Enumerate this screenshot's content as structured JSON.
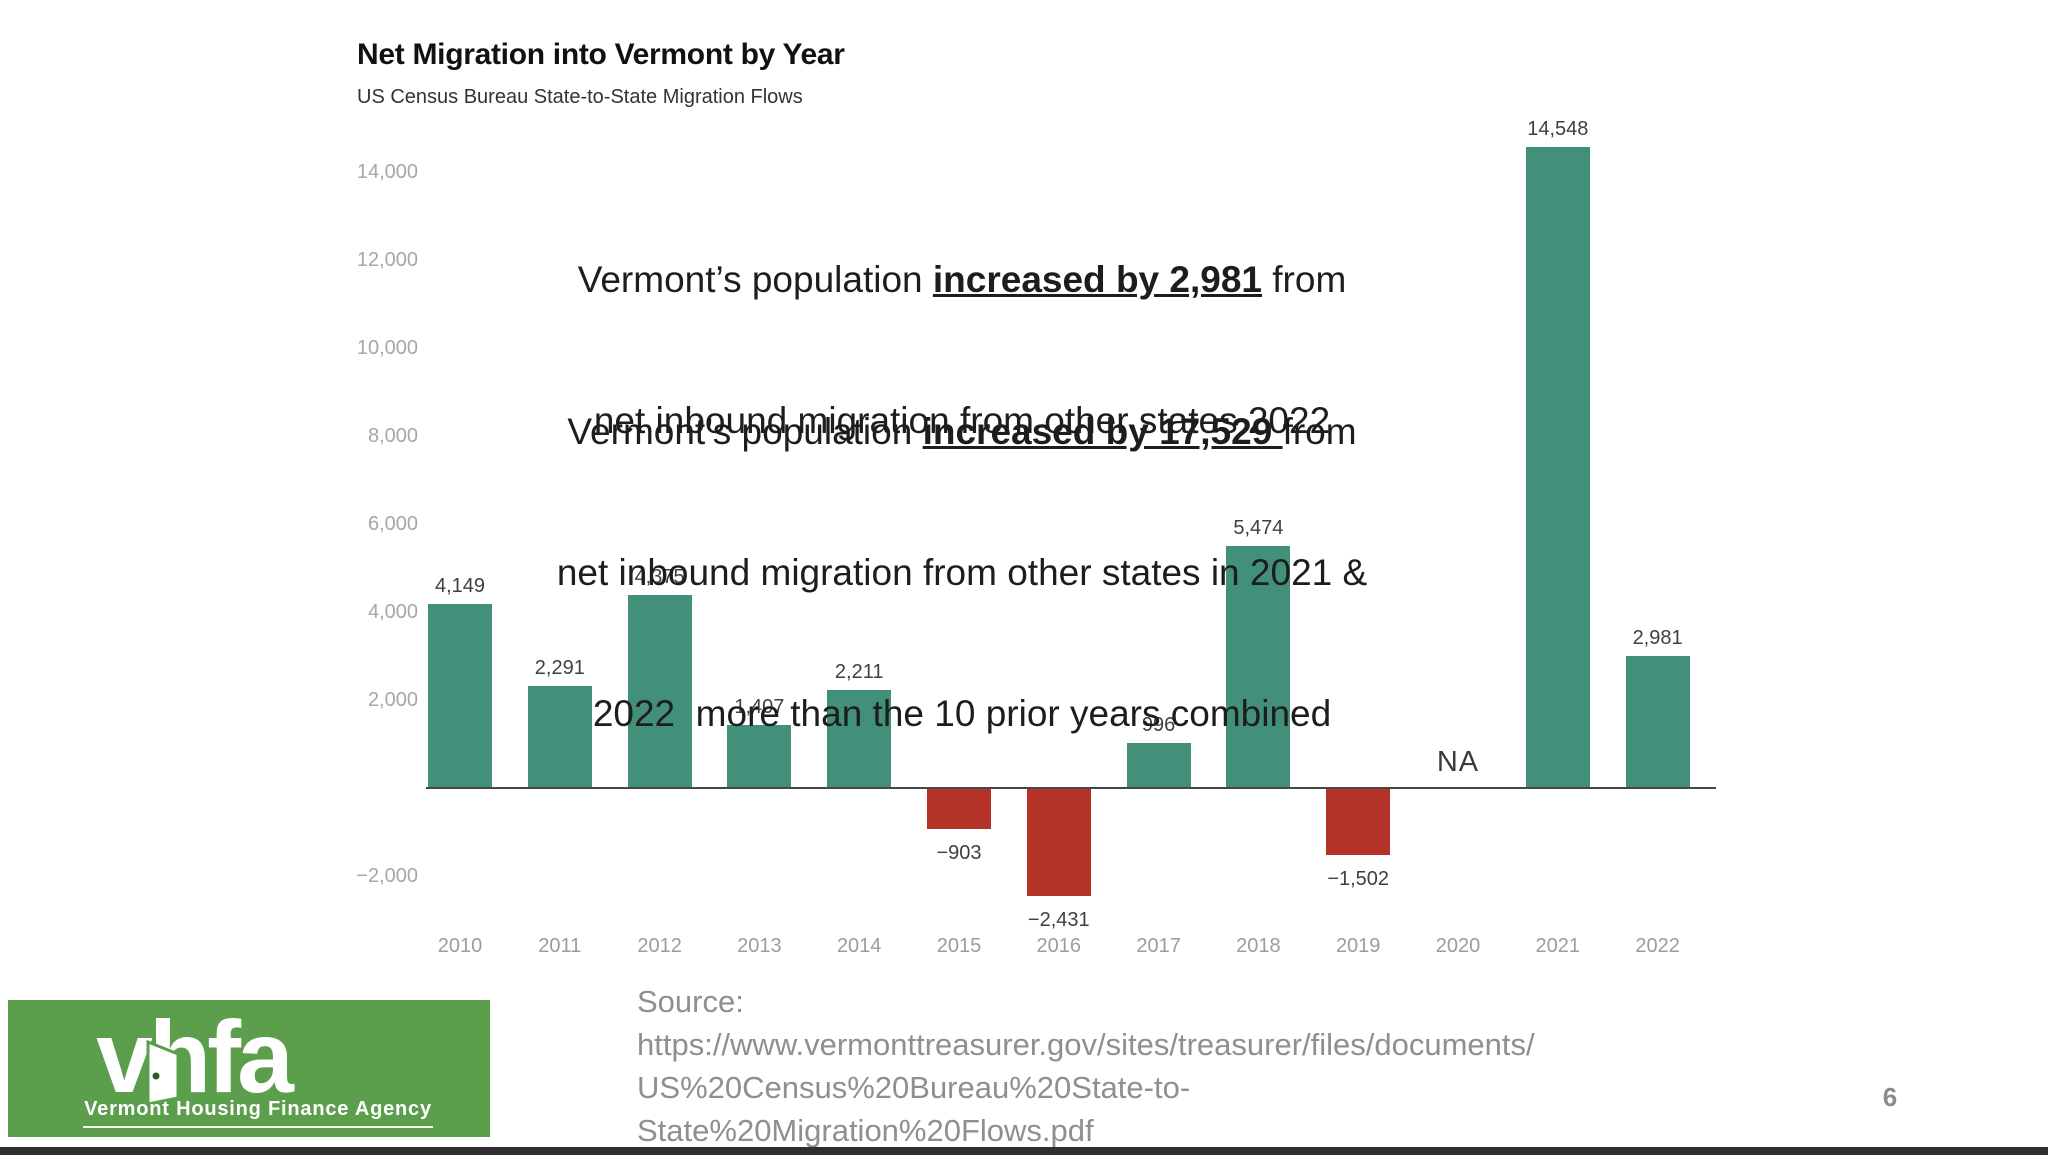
{
  "header": {
    "title": "Net Migration into Vermont by Year",
    "subtitle": "US Census Bureau State-to-State Migration Flows"
  },
  "annotations": {
    "block1": {
      "line1_pre": "Vermont’s population ",
      "line1_bold": "increased by 2,981",
      "line1_post": " from",
      "line2": "net inbound migration from other states 2022"
    },
    "block2": {
      "line1_pre": "Vermont’s population ",
      "line1_bold": "increased by 17,529 ",
      "line1_post": "from",
      "line2": "net inbound migration from other states in 2021 &",
      "line3": "2022  more than the 10 prior years combined"
    }
  },
  "chart_data": {
    "type": "bar",
    "title": "Net Migration into Vermont by Year",
    "subtitle": "US Census Bureau State-to-State Migration Flows",
    "categories": [
      "2010",
      "2011",
      "2012",
      "2013",
      "2014",
      "2015",
      "2016",
      "2017",
      "2018",
      "2019",
      "2020",
      "2021",
      "2022"
    ],
    "values": [
      4149,
      2291,
      4375,
      1407,
      2211,
      -903,
      -2431,
      996,
      5474,
      -1502,
      null,
      14548,
      2981
    ],
    "labels": [
      "4,149",
      "2,291",
      "4,375",
      "1,407",
      "2,211",
      "−903",
      "−2,431",
      "996",
      "5,474",
      "−1,502",
      "NA",
      "14,548",
      "2,981"
    ],
    "y_ticks": [
      {
        "value": 14000,
        "label": "14,000"
      },
      {
        "value": 12000,
        "label": "12,000"
      },
      {
        "value": 10000,
        "label": "10,000"
      },
      {
        "value": 8000,
        "label": "8,000"
      },
      {
        "value": 6000,
        "label": "6,000"
      },
      {
        "value": 4000,
        "label": "4,000"
      },
      {
        "value": 2000,
        "label": "2,000"
      },
      {
        "value": -2000,
        "label": "−2,000"
      }
    ],
    "ylim": [
      -3200,
      15500
    ],
    "xlabel": "",
    "ylabel": "",
    "grid": false,
    "legend": false,
    "colors": {
      "positive": "#42907A",
      "negative": "#B53228",
      "axis": "#474747"
    }
  },
  "footer": {
    "logo_wordmark": "vhfa",
    "logo_tagline": "Vermont Housing Finance Agency",
    "source_lines": [
      "Source:",
      "https://www.vermonttreasurer.gov/sites/treasurer/files/documents/",
      "US%20Census%20Bureau%20State-to-",
      "State%20Migration%20Flows.pdf"
    ],
    "page_number": "6"
  }
}
